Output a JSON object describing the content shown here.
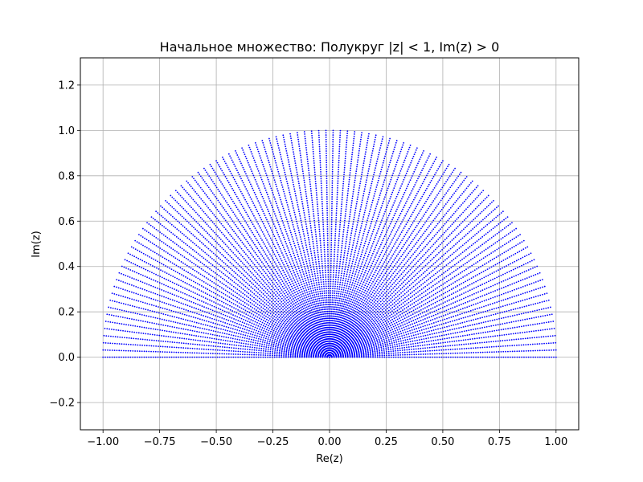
{
  "chart_data": {
    "type": "scatter",
    "title": "Начальное множество: Полукруг |z| < 1, Im(z) > 0",
    "xlabel": "Re(z)",
    "ylabel": "Im(z)",
    "xlim": [
      -1.1,
      1.1
    ],
    "ylim": [
      -0.32,
      1.32
    ],
    "xticks": [
      -1.0,
      -0.75,
      -0.5,
      -0.25,
      0.0,
      0.25,
      0.5,
      0.75,
      1.0
    ],
    "xtick_labels": [
      "−1.00",
      "−0.75",
      "−0.50",
      "−0.25",
      "0.00",
      "0.25",
      "0.50",
      "0.75",
      "1.00"
    ],
    "yticks": [
      -0.2,
      0.0,
      0.2,
      0.4,
      0.6,
      0.8,
      1.0,
      1.2
    ],
    "ytick_labels": [
      "−0.2",
      "0.0",
      "0.2",
      "0.4",
      "0.6",
      "0.8",
      "1.0",
      "1.2"
    ],
    "grid": true,
    "series": [
      {
        "marker": "point",
        "color": "#0000ff",
        "region": "upper half of unit disk, polar sample grid",
        "r_min": 0.0,
        "r_max": 1.0,
        "r_count": 100,
        "theta_min": 0.0,
        "theta_max": 3.14159,
        "theta_count": 100
      }
    ]
  }
}
